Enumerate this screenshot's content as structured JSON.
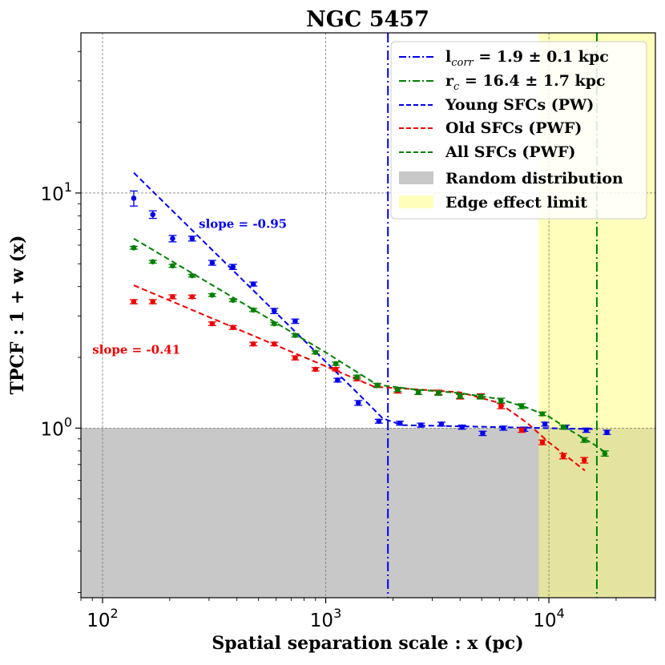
{
  "chart_data": {
    "type": "scatter",
    "title": "NGC 5457",
    "xlabel": "Spatial separation scale : x (pc)",
    "ylabel": "TPCF : 1 + w (x)",
    "xscale": "log",
    "yscale": "log",
    "xlim": [
      80,
      30000
    ],
    "ylim": [
      0.19,
      48
    ],
    "x_ticks": [
      {
        "value": 100,
        "base": "10",
        "exp": "2"
      },
      {
        "value": 1000,
        "base": "10",
        "exp": "3"
      },
      {
        "value": 10000,
        "base": "10",
        "exp": "4"
      }
    ],
    "y_ticks": [
      {
        "value": 1,
        "base": "10",
        "exp": "0"
      },
      {
        "value": 10,
        "base": "10",
        "exp": "1"
      }
    ],
    "grid": true,
    "regions": {
      "random": {
        "label": "Random distribution",
        "color": "#c8c8c8",
        "y_max": 1.0
      },
      "edge": {
        "label": "Edge effect limit",
        "color": "#ffff77",
        "x_min": 9000
      }
    },
    "vlines": {
      "lcorr": {
        "x": 1900,
        "color": "#0000ee",
        "label_main": "l",
        "label_sub": "corr",
        "label_rest": " = 1.9 ± 0.1 kpc"
      },
      "rc": {
        "x": 16400,
        "color": "#008000",
        "label_main": "r",
        "label_sub": "c",
        "label_rest": " = 16.4 ± 1.7 kpc"
      }
    },
    "series": [
      {
        "name": "Young SFCs",
        "fit_label": "Young SFCs (PW)",
        "color": "#0000ee",
        "points": [
          {
            "x": 138,
            "y": 9.5,
            "err": 0.7
          },
          {
            "x": 168,
            "y": 8.1,
            "err": 0.3
          },
          {
            "x": 206,
            "y": 6.4,
            "err": 0.2
          },
          {
            "x": 252,
            "y": 6.4,
            "err": 0.15
          },
          {
            "x": 310,
            "y": 5.05,
            "err": 0.12
          },
          {
            "x": 384,
            "y": 4.85,
            "err": 0.12
          },
          {
            "x": 474,
            "y": 4.1,
            "err": 0.08
          },
          {
            "x": 588,
            "y": 3.15,
            "err": 0.08
          },
          {
            "x": 730,
            "y": 2.85,
            "err": 0.06
          },
          {
            "x": 1130,
            "y": 1.6,
            "err": 0.03
          },
          {
            "x": 1400,
            "y": 1.28,
            "err": 0.03
          },
          {
            "x": 1730,
            "y": 1.07,
            "err": 0.02
          },
          {
            "x": 2150,
            "y": 1.05,
            "err": 0.02
          },
          {
            "x": 2670,
            "y": 1.03,
            "err": 0.02
          },
          {
            "x": 3300,
            "y": 1.04,
            "err": 0.02
          },
          {
            "x": 4080,
            "y": 1.01,
            "err": 0.02
          },
          {
            "x": 5050,
            "y": 0.95,
            "err": 0.02
          },
          {
            "x": 6250,
            "y": 1.0,
            "err": 0.02
          },
          {
            "x": 7750,
            "y": 0.99,
            "err": 0.02
          },
          {
            "x": 9600,
            "y": 1.04,
            "err": 0.02
          },
          {
            "x": 11900,
            "y": 1.01,
            "err": 0.02
          },
          {
            "x": 14700,
            "y": 0.98,
            "err": 0.02
          },
          {
            "x": 18200,
            "y": 0.96,
            "err": 0.02
          }
        ],
        "fit": [
          [
            138,
            12.2
          ],
          [
            1400,
            1.4
          ],
          [
            1800,
            1.1
          ],
          [
            2200,
            1.03
          ],
          [
            10000,
            1.0
          ],
          [
            16000,
            0.99
          ]
        ]
      },
      {
        "name": "Old SFCs",
        "fit_label": "Old SFCs (PWF)",
        "color": "#ee0000",
        "points": [
          {
            "x": 138,
            "y": 3.45,
            "err": 0.07
          },
          {
            "x": 168,
            "y": 3.45,
            "err": 0.07
          },
          {
            "x": 206,
            "y": 3.62,
            "err": 0.07
          },
          {
            "x": 252,
            "y": 3.62,
            "err": 0.06
          },
          {
            "x": 310,
            "y": 2.78,
            "err": 0.05
          },
          {
            "x": 384,
            "y": 2.68,
            "err": 0.05
          },
          {
            "x": 474,
            "y": 2.28,
            "err": 0.04
          },
          {
            "x": 588,
            "y": 2.28,
            "err": 0.04
          },
          {
            "x": 730,
            "y": 1.99,
            "err": 0.04
          },
          {
            "x": 900,
            "y": 1.78,
            "err": 0.03
          },
          {
            "x": 1110,
            "y": 1.78,
            "err": 0.03
          },
          {
            "x": 1380,
            "y": 1.62,
            "err": 0.03
          },
          {
            "x": 1700,
            "y": 1.52,
            "err": 0.03
          },
          {
            "x": 2100,
            "y": 1.44,
            "err": 0.03
          },
          {
            "x": 2600,
            "y": 1.42,
            "err": 0.03
          },
          {
            "x": 3200,
            "y": 1.42,
            "err": 0.03
          },
          {
            "x": 4000,
            "y": 1.36,
            "err": 0.03
          },
          {
            "x": 4950,
            "y": 1.37,
            "err": 0.03
          },
          {
            "x": 6100,
            "y": 1.24,
            "err": 0.03
          },
          {
            "x": 7550,
            "y": 0.98,
            "err": 0.02
          },
          {
            "x": 9350,
            "y": 0.87,
            "err": 0.02
          },
          {
            "x": 11600,
            "y": 0.76,
            "err": 0.02
          },
          {
            "x": 14400,
            "y": 0.73,
            "err": 0.02
          }
        ],
        "fit": [
          [
            138,
            4.05
          ],
          [
            1650,
            1.5
          ],
          [
            2600,
            1.46
          ],
          [
            4000,
            1.42
          ],
          [
            6000,
            1.28
          ],
          [
            8000,
            1.05
          ],
          [
            10000,
            0.87
          ],
          [
            14500,
            0.66
          ]
        ]
      },
      {
        "name": "All SFCs",
        "fit_label": "All SFCs (PWF)",
        "color": "#008000",
        "points": [
          {
            "x": 138,
            "y": 5.85,
            "err": 0.08
          },
          {
            "x": 168,
            "y": 5.1,
            "err": 0.07
          },
          {
            "x": 206,
            "y": 4.9,
            "err": 0.07
          },
          {
            "x": 252,
            "y": 4.45,
            "err": 0.06
          },
          {
            "x": 310,
            "y": 3.68,
            "err": 0.05
          },
          {
            "x": 384,
            "y": 3.5,
            "err": 0.05
          },
          {
            "x": 474,
            "y": 3.18,
            "err": 0.05
          },
          {
            "x": 588,
            "y": 2.78,
            "err": 0.04
          },
          {
            "x": 730,
            "y": 2.48,
            "err": 0.04
          },
          {
            "x": 900,
            "y": 2.1,
            "err": 0.03
          },
          {
            "x": 1110,
            "y": 1.88,
            "err": 0.03
          },
          {
            "x": 1380,
            "y": 1.65,
            "err": 0.03
          },
          {
            "x": 1700,
            "y": 1.52,
            "err": 0.03
          },
          {
            "x": 2100,
            "y": 1.46,
            "err": 0.03
          },
          {
            "x": 2600,
            "y": 1.42,
            "err": 0.03
          },
          {
            "x": 3200,
            "y": 1.41,
            "err": 0.03
          },
          {
            "x": 4000,
            "y": 1.37,
            "err": 0.03
          },
          {
            "x": 4950,
            "y": 1.36,
            "err": 0.03
          },
          {
            "x": 6100,
            "y": 1.31,
            "err": 0.03
          },
          {
            "x": 7550,
            "y": 1.24,
            "err": 0.03
          },
          {
            "x": 9350,
            "y": 1.15,
            "err": 0.02
          },
          {
            "x": 11600,
            "y": 1.01,
            "err": 0.02
          },
          {
            "x": 14400,
            "y": 0.89,
            "err": 0.02
          },
          {
            "x": 17800,
            "y": 0.78,
            "err": 0.02
          }
        ],
        "fit": [
          [
            138,
            6.4
          ],
          [
            1000,
            2.1
          ],
          [
            1700,
            1.53
          ],
          [
            2500,
            1.46
          ],
          [
            4000,
            1.41
          ],
          [
            6000,
            1.33
          ],
          [
            8000,
            1.22
          ],
          [
            10000,
            1.12
          ],
          [
            12000,
            1.0
          ],
          [
            16000,
            0.85
          ],
          [
            18200,
            0.78
          ]
        ]
      }
    ],
    "annotations": [
      {
        "text": "slope = -0.95",
        "x": 270,
        "y": 7.1,
        "color": "#0000ee"
      },
      {
        "text": "slope = -0.41",
        "x": 90,
        "y": 2.07,
        "color": "#ee0000"
      }
    ],
    "legend": {
      "position": "top-right"
    }
  }
}
